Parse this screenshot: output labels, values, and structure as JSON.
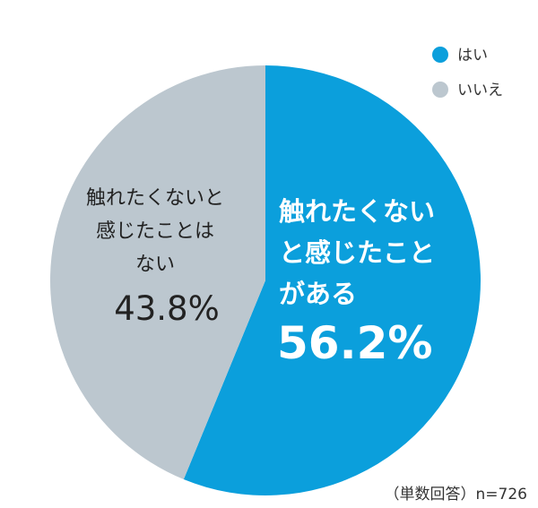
{
  "chart_data": {
    "type": "pie",
    "slices": [
      {
        "name": "はい",
        "value": 56.2,
        "value_label": "56.2%",
        "label_lines": [
          "触れたくない",
          "と感じたこと",
          "がある"
        ],
        "color": "#0b9fdc"
      },
      {
        "name": "いいえ",
        "value": 43.8,
        "value_label": "43.8%",
        "label_lines": [
          "触れたくないと",
          "感じたことは",
          "ない"
        ],
        "color": "#bcc7cf"
      }
    ],
    "start_angle_deg": 0,
    "direction": "clockwise",
    "legend": {
      "position": "top-right"
    },
    "note": "（単数回答）n=726"
  }
}
